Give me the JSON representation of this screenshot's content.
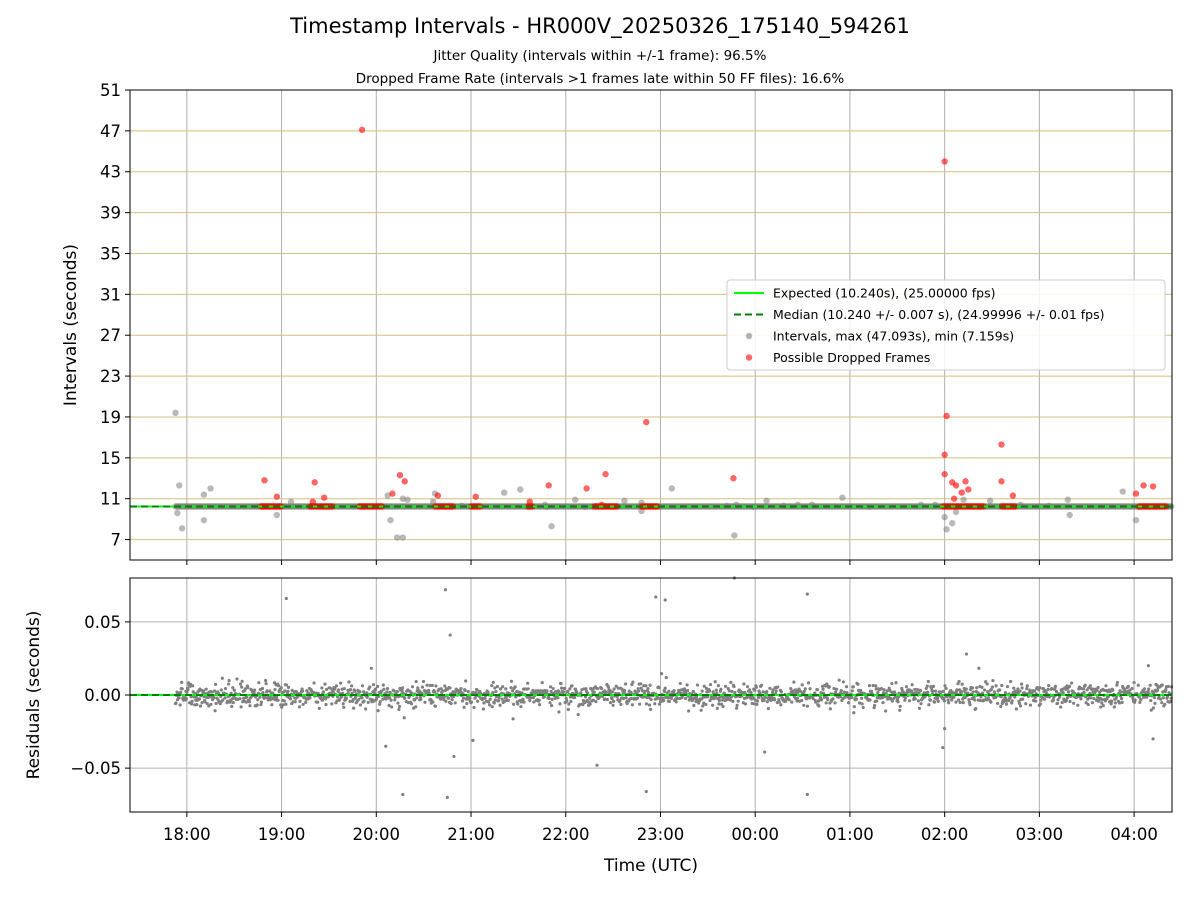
{
  "header": {
    "title": "Timestamp Intervals - HR000V_20250326_175140_594261",
    "subtitle_jitter": "Jitter Quality (intervals within +/-1 frame): 96.5%",
    "subtitle_dropped": "Dropped Frame Rate (intervals >1 frames late within 50 FF files): 16.6%"
  },
  "chart_data": [
    {
      "type": "scatter",
      "panel": "intervals",
      "ylabel": "Intervals (seconds)",
      "xlabel": "",
      "x_units": "hours (UTC), continuing past midnight (24 = 00:00 next day)",
      "xlim": [
        17.4,
        28.4
      ],
      "ylim": [
        5,
        51
      ],
      "yticks": [
        7,
        11,
        15,
        19,
        23,
        27,
        31,
        35,
        39,
        43,
        47,
        51
      ],
      "grid": {
        "x": true,
        "y": true,
        "y_color": "#d2bf7e"
      },
      "legend_position": "center-right",
      "legend": [
        {
          "label": "Expected (10.240s), (25.00000 fps)",
          "style": "solid-line",
          "color": "#00ff00"
        },
        {
          "label": "Median (10.240 +/- 0.007 s), (24.99996 +/- 0.01 fps)",
          "style": "dashed-line",
          "color": "#008000"
        },
        {
          "label": "Intervals, max (47.093s), min (7.159s)",
          "style": "marker",
          "color": "#808080"
        },
        {
          "label": "Possible Dropped Frames",
          "style": "marker",
          "color": "#ff0000"
        }
      ],
      "expected": 10.24,
      "median": 10.24,
      "series": [
        {
          "kind": "intervals",
          "color": "#808080",
          "points": [
            [
              17.88,
              19.4
            ],
            [
              17.92,
              12.3
            ],
            [
              17.9,
              9.6
            ],
            [
              17.95,
              8.1
            ],
            [
              18.18,
              11.4
            ],
            [
              18.25,
              12.0
            ],
            [
              18.18,
              8.9
            ],
            [
              18.95,
              9.4
            ],
            [
              19.1,
              10.7
            ],
            [
              20.12,
              11.3
            ],
            [
              20.15,
              8.9
            ],
            [
              20.22,
              7.2
            ],
            [
              20.28,
              7.2
            ],
            [
              20.28,
              11.0
            ],
            [
              20.33,
              10.9
            ],
            [
              20.6,
              10.7
            ],
            [
              20.62,
              11.5
            ],
            [
              20.9,
              10.3
            ],
            [
              21.35,
              11.6
            ],
            [
              21.52,
              11.9
            ],
            [
              21.78,
              10.4
            ],
            [
              21.85,
              8.3
            ],
            [
              21.8,
              10.2
            ],
            [
              22.1,
              10.9
            ],
            [
              22.2,
              10.2
            ],
            [
              22.62,
              10.8
            ],
            [
              22.8,
              9.8
            ],
            [
              22.8,
              10.6
            ],
            [
              23.12,
              12.0
            ],
            [
              23.7,
              10.3
            ],
            [
              23.78,
              7.4
            ],
            [
              23.8,
              10.4
            ],
            [
              23.98,
              10.2
            ],
            [
              24.12,
              10.8
            ],
            [
              24.3,
              10.3
            ],
            [
              24.45,
              10.4
            ],
            [
              24.6,
              10.4
            ],
            [
              24.92,
              11.1
            ],
            [
              25.2,
              10.2
            ],
            [
              25.75,
              10.4
            ],
            [
              25.9,
              10.4
            ],
            [
              26.0,
              9.2
            ],
            [
              26.02,
              8.0
            ],
            [
              26.08,
              8.6
            ],
            [
              26.12,
              9.7
            ],
            [
              26.2,
              10.9
            ],
            [
              26.48,
              10.8
            ],
            [
              26.8,
              10.4
            ],
            [
              27.1,
              10.3
            ],
            [
              27.3,
              10.9
            ],
            [
              27.32,
              9.4
            ],
            [
              27.88,
              11.7
            ],
            [
              28.02,
              8.9
            ],
            [
              28.05,
              10.2
            ]
          ]
        },
        {
          "kind": "possible_dropped_frames",
          "color": "#ff0000",
          "points": [
            [
              18.82,
              12.8
            ],
            [
              18.95,
              11.2
            ],
            [
              19.35,
              12.6
            ],
            [
              19.33,
              10.7
            ],
            [
              19.45,
              11.1
            ],
            [
              19.85,
              47.1
            ],
            [
              20.17,
              11.5
            ],
            [
              20.25,
              13.3
            ],
            [
              20.3,
              12.7
            ],
            [
              20.65,
              11.3
            ],
            [
              21.05,
              11.2
            ],
            [
              21.62,
              10.7
            ],
            [
              21.82,
              12.3
            ],
            [
              22.22,
              12.0
            ],
            [
              22.38,
              10.4
            ],
            [
              22.42,
              13.4
            ],
            [
              22.85,
              18.5
            ],
            [
              23.77,
              13.0
            ],
            [
              26.0,
              44.0
            ],
            [
              26.0,
              15.3
            ],
            [
              26.0,
              13.4
            ],
            [
              26.02,
              19.1
            ],
            [
              26.08,
              12.6
            ],
            [
              26.12,
              12.3
            ],
            [
              26.18,
              11.6
            ],
            [
              26.22,
              12.7
            ],
            [
              26.25,
              11.9
            ],
            [
              26.1,
              11.0
            ],
            [
              26.6,
              16.3
            ],
            [
              26.6,
              12.7
            ],
            [
              26.72,
              11.3
            ],
            [
              28.02,
              11.5
            ],
            [
              28.1,
              12.3
            ],
            [
              28.2,
              12.2
            ]
          ],
          "baseline_clusters": [
            [
              18.78,
              19.0
            ],
            [
              19.3,
              19.55
            ],
            [
              19.82,
              20.07
            ],
            [
              20.62,
              20.82
            ],
            [
              21.0,
              21.1
            ],
            [
              21.6,
              21.65
            ],
            [
              22.3,
              22.55
            ],
            [
              22.8,
              22.98
            ],
            [
              25.98,
              26.42
            ],
            [
              26.6,
              26.75
            ],
            [
              28.05,
              28.35
            ]
          ]
        }
      ]
    },
    {
      "type": "scatter",
      "panel": "residuals",
      "ylabel": "Residuals (seconds)",
      "xlabel": "Time (UTC)",
      "x_units": "hours (UTC), continuing past midnight (24 = 00:00 next day)",
      "xlim": [
        17.4,
        28.4
      ],
      "ylim": [
        -0.08,
        0.08
      ],
      "yticks": [
        -0.05,
        0.0,
        0.05
      ],
      "ytick_labels": [
        "−0.05",
        "0.00",
        "0.05"
      ],
      "xticks": [
        18,
        19,
        20,
        21,
        22,
        23,
        24,
        25,
        26,
        27,
        28
      ],
      "xtick_labels": [
        "18:00",
        "19:00",
        "20:00",
        "21:00",
        "22:00",
        "23:00",
        "00:00",
        "01:00",
        "02:00",
        "03:00",
        "04:00"
      ],
      "grid": {
        "x": true,
        "y": true
      },
      "zero_line_color": "#00ff00",
      "bulk_range_x": [
        17.88,
        28.4
      ],
      "bulk_spread_seconds": 0.008,
      "series": [
        {
          "kind": "residuals",
          "color": "#808080",
          "outliers": [
            [
              20.73,
              0.072
            ],
            [
              20.78,
              0.041
            ],
            [
              19.05,
              0.066
            ],
            [
              22.95,
              0.067
            ],
            [
              23.05,
              0.065
            ],
            [
              23.78,
              0.08
            ],
            [
              24.55,
              0.069
            ],
            [
              26.23,
              0.028
            ],
            [
              28.15,
              0.02
            ],
            [
              20.28,
              -0.068
            ],
            [
              20.75,
              -0.07
            ],
            [
              20.82,
              -0.042
            ],
            [
              21.02,
              -0.031
            ],
            [
              22.33,
              -0.048
            ],
            [
              22.85,
              -0.066
            ],
            [
              24.55,
              -0.068
            ],
            [
              26.0,
              -0.023
            ],
            [
              25.98,
              -0.036
            ],
            [
              28.2,
              -0.03
            ],
            [
              20.1,
              -0.035
            ],
            [
              24.1,
              -0.039
            ]
          ]
        }
      ]
    }
  ]
}
